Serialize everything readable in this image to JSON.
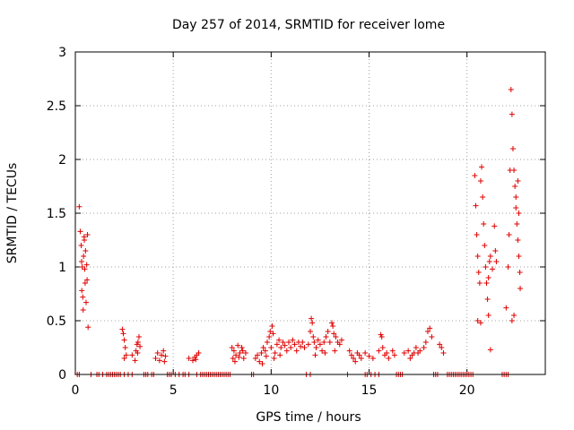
{
  "chart_data": {
    "type": "scatter",
    "title": "Day 257 of 2014, SRMTID for receiver lome",
    "xlabel": "GPS time / hours",
    "ylabel": "SRMTID / TECUs",
    "xlim": [
      0,
      24
    ],
    "ylim": [
      0,
      3
    ],
    "xticks": [
      0,
      5,
      10,
      15,
      20
    ],
    "yticks": [
      0,
      0.5,
      1,
      1.5,
      2,
      2.5,
      3
    ],
    "ytick_labels": [
      "0",
      "0.5",
      "1",
      "1.5",
      "2",
      "2.5",
      "3"
    ],
    "grid": true,
    "legend": "none",
    "marker": "plus",
    "color": "#e00000",
    "series": [
      {
        "values": [
          [
            0.2,
            1.56
          ],
          [
            0.25,
            1.33
          ],
          [
            0.3,
            1.2
          ],
          [
            0.32,
            1.05
          ],
          [
            0.35,
            1.0
          ],
          [
            0.38,
            0.72
          ],
          [
            0.4,
            0.6
          ],
          [
            0.42,
            1.1
          ],
          [
            0.45,
            1.28
          ],
          [
            0.48,
            0.98
          ],
          [
            0.5,
            0.85
          ],
          [
            0.52,
            1.15
          ],
          [
            0.55,
            0.67
          ],
          [
            0.58,
            1.02
          ],
          [
            0.6,
            0.88
          ],
          [
            0.62,
            1.3
          ],
          [
            0.65,
            0.44
          ],
          [
            0.33,
            0.78
          ],
          [
            0.46,
            1.25
          ],
          [
            2.4,
            0.42
          ],
          [
            2.45,
            0.38
          ],
          [
            2.5,
            0.32
          ],
          [
            2.55,
            0.25
          ],
          [
            2.6,
            0.18
          ],
          [
            2.5,
            0.15
          ],
          [
            2.9,
            0.18
          ],
          [
            3.1,
            0.22
          ],
          [
            3.15,
            0.28
          ],
          [
            3.2,
            0.3
          ],
          [
            3.25,
            0.35
          ],
          [
            3.3,
            0.26
          ],
          [
            3.18,
            0.2
          ],
          [
            3.05,
            0.13
          ],
          [
            4.1,
            0.15
          ],
          [
            4.2,
            0.2
          ],
          [
            4.3,
            0.13
          ],
          [
            4.4,
            0.18
          ],
          [
            4.5,
            0.22
          ],
          [
            4.55,
            0.12
          ],
          [
            4.6,
            0.17
          ],
          [
            5.8,
            0.15
          ],
          [
            6.0,
            0.13
          ],
          [
            6.1,
            0.16
          ],
          [
            6.2,
            0.18
          ],
          [
            6.3,
            0.2
          ],
          [
            6.15,
            0.14
          ],
          [
            8.0,
            0.25
          ],
          [
            8.1,
            0.22
          ],
          [
            8.2,
            0.18
          ],
          [
            8.3,
            0.27
          ],
          [
            8.4,
            0.2
          ],
          [
            8.5,
            0.25
          ],
          [
            8.6,
            0.15
          ],
          [
            8.15,
            0.12
          ],
          [
            8.35,
            0.16
          ],
          [
            8.55,
            0.22
          ],
          [
            8.7,
            0.2
          ],
          [
            8.05,
            0.15
          ],
          [
            9.2,
            0.15
          ],
          [
            9.3,
            0.18
          ],
          [
            9.4,
            0.12
          ],
          [
            9.5,
            0.2
          ],
          [
            9.6,
            0.25
          ],
          [
            9.7,
            0.22
          ],
          [
            9.8,
            0.3
          ],
          [
            9.9,
            0.35
          ],
          [
            10.0,
            0.25
          ],
          [
            10.05,
            0.45
          ],
          [
            9.95,
            0.4
          ],
          [
            10.1,
            0.38
          ],
          [
            10.2,
            0.2
          ],
          [
            10.3,
            0.28
          ],
          [
            10.4,
            0.32
          ],
          [
            10.5,
            0.25
          ],
          [
            10.6,
            0.3
          ],
          [
            10.7,
            0.27
          ],
          [
            10.8,
            0.22
          ],
          [
            10.9,
            0.3
          ],
          [
            11.0,
            0.25
          ],
          [
            11.1,
            0.32
          ],
          [
            11.2,
            0.28
          ],
          [
            11.3,
            0.22
          ],
          [
            11.4,
            0.3
          ],
          [
            11.5,
            0.26
          ],
          [
            11.6,
            0.3
          ],
          [
            11.7,
            0.25
          ],
          [
            9.55,
            0.1
          ],
          [
            9.75,
            0.17
          ],
          [
            10.15,
            0.15
          ],
          [
            10.45,
            0.18
          ],
          [
            11.9,
            0.28
          ],
          [
            12.0,
            0.4
          ],
          [
            12.05,
            0.52
          ],
          [
            12.1,
            0.48
          ],
          [
            12.15,
            0.35
          ],
          [
            12.2,
            0.3
          ],
          [
            12.3,
            0.25
          ],
          [
            12.4,
            0.32
          ],
          [
            12.5,
            0.28
          ],
          [
            12.6,
            0.22
          ],
          [
            12.7,
            0.3
          ],
          [
            12.8,
            0.35
          ],
          [
            12.9,
            0.4
          ],
          [
            13.0,
            0.3
          ],
          [
            13.1,
            0.48
          ],
          [
            13.15,
            0.45
          ],
          [
            13.2,
            0.38
          ],
          [
            13.3,
            0.35
          ],
          [
            13.4,
            0.3
          ],
          [
            13.5,
            0.28
          ],
          [
            13.6,
            0.32
          ],
          [
            12.25,
            0.18
          ],
          [
            12.75,
            0.2
          ],
          [
            13.25,
            0.22
          ],
          [
            14.0,
            0.22
          ],
          [
            14.1,
            0.18
          ],
          [
            14.2,
            0.15
          ],
          [
            14.3,
            0.12
          ],
          [
            14.4,
            0.2
          ],
          [
            14.5,
            0.18
          ],
          [
            14.6,
            0.15
          ],
          [
            14.8,
            0.2
          ],
          [
            15.0,
            0.17
          ],
          [
            15.2,
            0.15
          ],
          [
            15.5,
            0.22
          ],
          [
            15.6,
            0.37
          ],
          [
            15.65,
            0.35
          ],
          [
            15.7,
            0.25
          ],
          [
            15.8,
            0.18
          ],
          [
            15.9,
            0.2
          ],
          [
            16.0,
            0.15
          ],
          [
            16.2,
            0.22
          ],
          [
            16.3,
            0.18
          ],
          [
            16.8,
            0.2
          ],
          [
            17.0,
            0.22
          ],
          [
            17.1,
            0.15
          ],
          [
            17.2,
            0.18
          ],
          [
            17.3,
            0.2
          ],
          [
            17.4,
            0.25
          ],
          [
            17.5,
            0.2
          ],
          [
            17.6,
            0.22
          ],
          [
            17.8,
            0.25
          ],
          [
            17.9,
            0.3
          ],
          [
            18.0,
            0.4
          ],
          [
            18.1,
            0.43
          ],
          [
            18.2,
            0.35
          ],
          [
            18.6,
            0.28
          ],
          [
            18.7,
            0.25
          ],
          [
            18.8,
            0.2
          ],
          [
            20.4,
            1.85
          ],
          [
            20.45,
            1.57
          ],
          [
            20.5,
            1.3
          ],
          [
            20.55,
            1.1
          ],
          [
            20.6,
            0.95
          ],
          [
            20.65,
            0.85
          ],
          [
            20.7,
            1.8
          ],
          [
            20.75,
            1.93
          ],
          [
            20.8,
            1.65
          ],
          [
            20.85,
            1.4
          ],
          [
            20.9,
            1.2
          ],
          [
            20.95,
            1.0
          ],
          [
            21.0,
            0.85
          ],
          [
            21.05,
            0.7
          ],
          [
            21.1,
            0.9
          ],
          [
            21.15,
            1.05
          ],
          [
            21.2,
            1.1
          ],
          [
            21.3,
            0.98
          ],
          [
            21.4,
            1.38
          ],
          [
            21.45,
            1.15
          ],
          [
            21.5,
            1.05
          ],
          [
            20.55,
            0.5
          ],
          [
            20.7,
            0.48
          ],
          [
            21.1,
            0.55
          ],
          [
            21.2,
            0.23
          ],
          [
            22.0,
            0.62
          ],
          [
            22.1,
            1.0
          ],
          [
            22.15,
            1.3
          ],
          [
            22.2,
            1.9
          ],
          [
            22.25,
            2.65
          ],
          [
            22.3,
            2.42
          ],
          [
            22.35,
            2.1
          ],
          [
            22.4,
            1.9
          ],
          [
            22.45,
            1.75
          ],
          [
            22.5,
            1.55
          ],
          [
            22.55,
            1.4
          ],
          [
            22.6,
            1.25
          ],
          [
            22.65,
            1.1
          ],
          [
            22.7,
            0.95
          ],
          [
            22.72,
            0.8
          ],
          [
            22.3,
            0.5
          ],
          [
            22.4,
            0.55
          ],
          [
            22.5,
            1.65
          ],
          [
            22.6,
            1.8
          ],
          [
            22.65,
            1.5
          ],
          [
            0.1,
            0.0
          ],
          [
            0.2,
            0.0
          ],
          [
            0.8,
            0.0
          ],
          [
            1.1,
            0.0
          ],
          [
            1.2,
            0.0
          ],
          [
            1.4,
            0.0
          ],
          [
            1.6,
            0.0
          ],
          [
            1.7,
            0.0
          ],
          [
            1.8,
            0.0
          ],
          [
            1.9,
            0.0
          ],
          [
            2.0,
            0.0
          ],
          [
            2.1,
            0.0
          ],
          [
            2.2,
            0.0
          ],
          [
            2.3,
            0.0
          ],
          [
            2.5,
            0.0
          ],
          [
            2.7,
            0.0
          ],
          [
            2.9,
            0.0
          ],
          [
            3.5,
            0.0
          ],
          [
            3.6,
            0.0
          ],
          [
            3.7,
            0.0
          ],
          [
            3.9,
            0.0
          ],
          [
            4.0,
            0.0
          ],
          [
            4.7,
            0.0
          ],
          [
            4.8,
            0.0
          ],
          [
            4.9,
            0.0
          ],
          [
            5.1,
            0.0
          ],
          [
            5.3,
            0.0
          ],
          [
            5.5,
            0.0
          ],
          [
            5.6,
            0.0
          ],
          [
            5.8,
            0.0
          ],
          [
            6.2,
            0.0
          ],
          [
            6.4,
            0.0
          ],
          [
            6.5,
            0.0
          ],
          [
            6.6,
            0.0
          ],
          [
            6.7,
            0.0
          ],
          [
            6.8,
            0.0
          ],
          [
            6.9,
            0.0
          ],
          [
            7.0,
            0.0
          ],
          [
            7.1,
            0.0
          ],
          [
            7.2,
            0.0
          ],
          [
            7.3,
            0.0
          ],
          [
            7.4,
            0.0
          ],
          [
            7.5,
            0.0
          ],
          [
            7.6,
            0.0
          ],
          [
            7.7,
            0.0
          ],
          [
            7.8,
            0.0
          ],
          [
            7.9,
            0.0
          ],
          [
            9.0,
            0.0
          ],
          [
            9.1,
            0.0
          ],
          [
            11.8,
            0.0
          ],
          [
            12.0,
            0.0
          ],
          [
            13.9,
            0.0
          ],
          [
            14.8,
            0.0
          ],
          [
            14.9,
            0.0
          ],
          [
            15.1,
            0.0
          ],
          [
            15.3,
            0.0
          ],
          [
            15.5,
            0.0
          ],
          [
            16.4,
            0.0
          ],
          [
            16.5,
            0.0
          ],
          [
            16.6,
            0.0
          ],
          [
            16.7,
            0.0
          ],
          [
            18.3,
            0.0
          ],
          [
            18.4,
            0.0
          ],
          [
            18.5,
            0.0
          ],
          [
            19.0,
            0.0
          ],
          [
            19.1,
            0.0
          ],
          [
            19.2,
            0.0
          ],
          [
            19.3,
            0.0
          ],
          [
            19.4,
            0.0
          ],
          [
            19.5,
            0.0
          ],
          [
            19.6,
            0.0
          ],
          [
            19.7,
            0.0
          ],
          [
            19.8,
            0.0
          ],
          [
            19.9,
            0.0
          ],
          [
            20.0,
            0.0
          ],
          [
            20.1,
            0.0
          ],
          [
            20.2,
            0.0
          ],
          [
            20.3,
            0.0
          ],
          [
            21.8,
            0.0
          ],
          [
            21.9,
            0.0
          ],
          [
            22.0,
            0.0
          ],
          [
            22.1,
            0.0
          ]
        ]
      }
    ]
  }
}
